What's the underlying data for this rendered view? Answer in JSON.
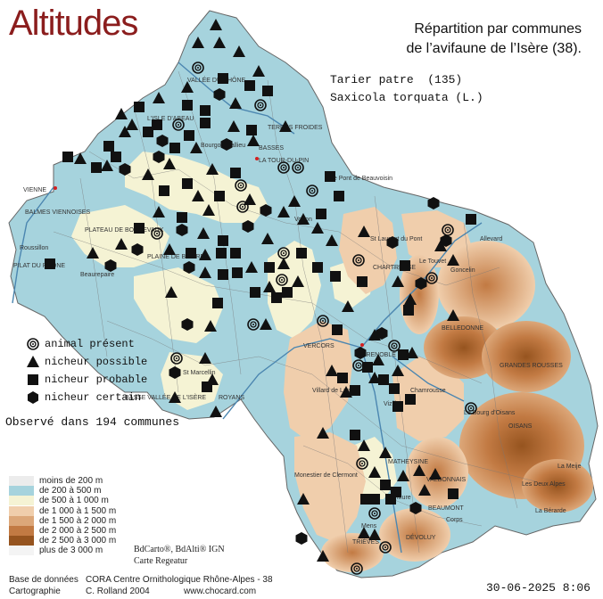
{
  "title": "Altitudes",
  "heading": {
    "line1": "Répartition par communes",
    "line2": "de l’avifaune de l’Isère (38)."
  },
  "species": {
    "common": "Tarier patre  (135)",
    "latin": "Saxicola torquata (L.)"
  },
  "legend": [
    {
      "symbol": "animal-present",
      "label": "animal présent"
    },
    {
      "symbol": "nicheur-possible",
      "label": "nicheur possible"
    },
    {
      "symbol": "nicheur-probable",
      "label": "nicheur probable"
    },
    {
      "symbol": "nicheur-certain",
      "label": "nicheur certain"
    }
  ],
  "observed": "Observé dans 194 communes",
  "altitude_legend": [
    {
      "label": "moins de 200 m",
      "color": "#ececec"
    },
    {
      "label": "de 200 à 500 m",
      "color": "#a6d3dd"
    },
    {
      "label": "de 500 à 1 000 m",
      "color": "#f5f3d4"
    },
    {
      "label": "de 1 000 à 1 500 m",
      "color": "#f0ceac"
    },
    {
      "label": "de 1 500 à 2 000 m",
      "color": "#dca779"
    },
    {
      "label": "de 2 000 à 2 500 m",
      "color": "#c27a43"
    },
    {
      "label": "de 2 500 à 3 000 m",
      "color": "#96541f"
    },
    {
      "label": "plus de 3 000 m",
      "color": "#f4f4f4"
    }
  ],
  "credits": {
    "ign_line1": "BdCarto®, BdAlti® IGN",
    "ign_line2": "Carte Regeatur",
    "base_label": "Base de données",
    "base_value": "CORA Centre Ornithologique Rhône-Alpes - 38",
    "carto_label": "Cartographie",
    "carto_value": "C. Rolland 2004",
    "website": "www.chocard.com"
  },
  "date": "30-06-2025 8:06",
  "places": [
    "VALLÉE DU RHÔNE",
    "L'ISLE D'ABEAU",
    "TERRES FROIDES",
    "BASSES",
    "LA TOUR-DU-PIN",
    "Bourgoin-Jallieu",
    "VIENNE",
    "BALMES VIENNOISES",
    "PLATEAU DE BONNEVAUX",
    "PLAINE DE BIÈVRE",
    "Roussillon",
    "PILAT DU RHÔNE",
    "Beaurepaire",
    "Le Pont de Beauvoisin",
    "Voiron",
    "CHARTREUSE",
    "St Laurent du Pont",
    "Le Touvet",
    "Goncelin",
    "Allevard",
    "BELLEDONNE",
    "GRENOBLE",
    "VERCORS",
    "ROYANS",
    "St Marcellin",
    "BASSE VALLÉE DE L'ISÈRE",
    "Villard de Lans",
    "Vizille",
    "Chamrousse",
    "Le Bourg d'Oisans",
    "OISANS",
    "GRANDES ROUSSES",
    "TRIÈVES",
    "MATHEYSINE",
    "La Mure",
    "Corps",
    "BEAUMONT",
    "DÉVOLUY",
    "Monestier de Clermont",
    "VALBONNAIS",
    "La Meije",
    "Les Deux Alpes",
    "La Bérarde",
    "Mens"
  ]
}
